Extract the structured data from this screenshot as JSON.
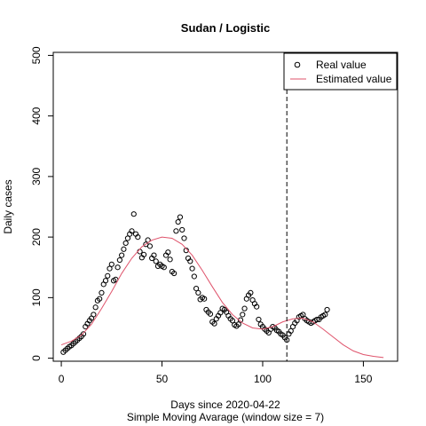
{
  "chart_data": {
    "type": "scatter",
    "title": "Sudan / Logistic",
    "xlabel": "Days since 2020-04-22",
    "subtitle": "Simple Moving Avarage (window size = 7)",
    "ylabel": "Daily cases",
    "xlim": [
      -4,
      167
    ],
    "ylim": [
      -5,
      505
    ],
    "x_ticks": [
      0,
      50,
      100,
      150
    ],
    "y_ticks": [
      0,
      100,
      200,
      300,
      400,
      500
    ],
    "x_tick_labels": [
      "0",
      "50",
      "100",
      "150"
    ],
    "y_tick_labels": [
      "0",
      "100",
      "200",
      "300",
      "400",
      "500"
    ],
    "grid": false,
    "legend": {
      "position": "top-right",
      "entries": [
        "Real value",
        "Estimated value"
      ]
    },
    "vline_x": 112,
    "colors": {
      "estimated": "#DF536B",
      "points": "#000000",
      "vline": "#000000"
    },
    "series": [
      {
        "name": "Real value",
        "kind": "points",
        "x": [
          1,
          2,
          3,
          4,
          5,
          6,
          7,
          8,
          9,
          10,
          11,
          12,
          13,
          14,
          15,
          16,
          17,
          18,
          19,
          20,
          21,
          22,
          23,
          24,
          25,
          26,
          27,
          28,
          29,
          30,
          31,
          32,
          33,
          34,
          35,
          36,
          37,
          38,
          39,
          40,
          41,
          42,
          43,
          44,
          45,
          46,
          47,
          48,
          49,
          50,
          51,
          52,
          53,
          54,
          55,
          56,
          57,
          58,
          59,
          60,
          61,
          62,
          63,
          64,
          65,
          66,
          67,
          68,
          69,
          70,
          71,
          72,
          73,
          74,
          75,
          76,
          77,
          78,
          79,
          80,
          81,
          82,
          83,
          84,
          85,
          86,
          87,
          88,
          89,
          90,
          91,
          92,
          93,
          94,
          95,
          96,
          97,
          98,
          99,
          100,
          101,
          102,
          103,
          104,
          105,
          106,
          107,
          108,
          109,
          110,
          111,
          112,
          113,
          114,
          115,
          116,
          117,
          118,
          119,
          120,
          121,
          122,
          123,
          124,
          125,
          126,
          127,
          128,
          129,
          130,
          131,
          132
        ],
        "y": [
          10,
          13,
          16,
          19,
          21,
          24,
          27,
          30,
          33,
          36,
          40,
          52,
          57,
          62,
          66,
          72,
          84,
          95,
          98,
          108,
          122,
          128,
          136,
          148,
          155,
          128,
          130,
          150,
          162,
          170,
          180,
          190,
          198,
          205,
          210,
          238,
          205,
          200,
          176,
          166,
          171,
          188,
          195,
          185,
          165,
          170,
          160,
          152,
          155,
          152,
          150,
          170,
          175,
          163,
          143,
          140,
          210,
          225,
          233,
          212,
          198,
          178,
          165,
          160,
          148,
          135,
          115,
          108,
          97,
          100,
          98,
          80,
          76,
          73,
          60,
          57,
          65,
          70,
          75,
          82,
          80,
          76,
          70,
          65,
          62,
          55,
          53,
          56,
          63,
          72,
          82,
          98,
          104,
          108,
          96,
          90,
          85,
          64,
          56,
          52,
          48,
          45,
          42,
          48,
          52,
          50,
          46,
          44,
          40,
          38,
          34,
          30,
          40,
          45,
          52,
          58,
          62,
          68,
          70,
          72,
          65,
          62,
          60,
          58,
          60,
          62,
          64,
          64,
          68,
          70,
          72,
          80
        ]
      },
      {
        "name": "Estimated value",
        "kind": "line",
        "x": [
          0,
          5,
          10,
          15,
          20,
          25,
          30,
          35,
          40,
          45,
          50,
          55,
          60,
          65,
          70,
          75,
          80,
          85,
          90,
          95,
          100,
          105,
          110,
          115,
          120,
          125,
          130,
          135,
          140,
          145,
          150,
          155,
          160
        ],
        "y": [
          22,
          28,
          38,
          56,
          82,
          110,
          140,
          165,
          184,
          195,
          200,
          198,
          188,
          170,
          145,
          118,
          92,
          72,
          58,
          50,
          48,
          52,
          60,
          65,
          66,
          60,
          48,
          35,
          22,
          12,
          6,
          3,
          1
        ]
      }
    ]
  }
}
